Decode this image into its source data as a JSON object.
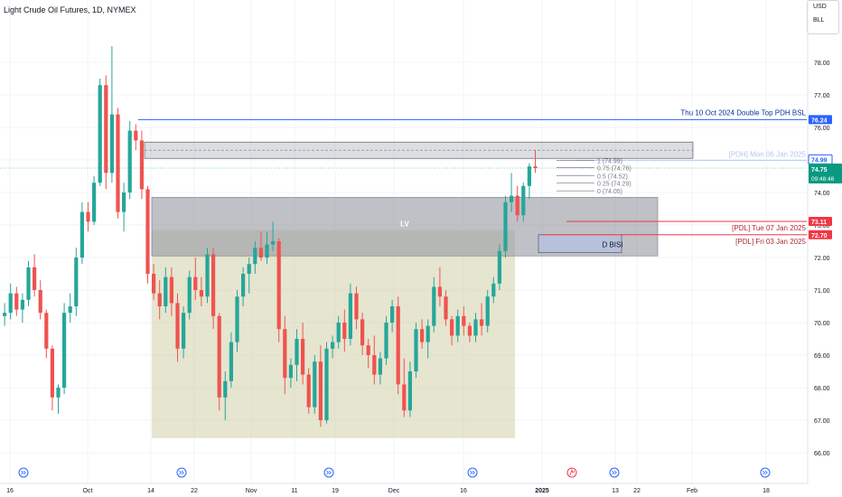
{
  "header": {
    "symbol_title": "Light Crude Oil Futures, 1D, NYMEX",
    "currency": "USD",
    "unit": "BLL"
  },
  "colors": {
    "up": "#26a69a",
    "down": "#ef5350",
    "blue_line": "#2962ff",
    "red_line": "#f23645",
    "range_box": "#d1d0a8",
    "lv_box": "#9598a1",
    "current_price": "#089981"
  },
  "chart_data": {
    "type": "candlestick",
    "ylim": [
      65.6,
      79.5
    ],
    "y_ticks": [
      66.0,
      67.0,
      68.0,
      69.0,
      70.0,
      71.0,
      72.0,
      73.0,
      74.0,
      75.0,
      76.0,
      77.0,
      78.0
    ],
    "x_ticks": [
      "16",
      "Oct",
      "14",
      "22",
      "Nov",
      "11",
      "19",
      "Dec",
      "16",
      "2025",
      "13",
      "22",
      "Feb",
      "18"
    ],
    "candles": [
      [
        70.2,
        70.6,
        69.9,
        70.3
      ],
      [
        70.3,
        71.2,
        70.1,
        70.9
      ],
      [
        70.9,
        71.1,
        70.2,
        70.4
      ],
      [
        70.4,
        70.9,
        70.0,
        70.7
      ],
      [
        70.7,
        71.9,
        70.5,
        71.7
      ],
      [
        71.7,
        72.1,
        70.8,
        71.0
      ],
      [
        71.0,
        71.3,
        70.1,
        70.3
      ],
      [
        70.3,
        70.4,
        68.9,
        69.2
      ],
      [
        69.2,
        69.3,
        67.3,
        67.7
      ],
      [
        67.7,
        68.1,
        67.2,
        68.0
      ],
      [
        68.0,
        70.6,
        67.8,
        70.3
      ],
      [
        70.3,
        70.9,
        70.0,
        70.5
      ],
      [
        70.5,
        72.3,
        70.2,
        72.0
      ],
      [
        72.0,
        73.7,
        71.8,
        73.4
      ],
      [
        73.4,
        73.7,
        72.8,
        73.1
      ],
      [
        73.1,
        74.5,
        73.0,
        74.3
      ],
      [
        74.3,
        77.5,
        74.2,
        77.3
      ],
      [
        77.3,
        77.6,
        74.1,
        74.6
      ],
      [
        74.6,
        78.5,
        74.3,
        76.4
      ],
      [
        76.4,
        76.6,
        73.2,
        73.4
      ],
      [
        73.4,
        74.3,
        72.8,
        74.0
      ],
      [
        74.0,
        76.2,
        73.8,
        75.9
      ],
      [
        75.9,
        76.1,
        75.3,
        75.6
      ],
      [
        75.6,
        75.9,
        73.8,
        74.1
      ],
      [
        74.1,
        74.2,
        71.2,
        71.5
      ],
      [
        71.5,
        71.8,
        70.7,
        70.9
      ],
      [
        70.9,
        71.3,
        70.1,
        70.5
      ],
      [
        70.5,
        71.7,
        70.3,
        71.4
      ],
      [
        71.4,
        71.7,
        70.2,
        70.6
      ],
      [
        70.6,
        70.9,
        68.8,
        69.2
      ],
      [
        69.2,
        70.5,
        68.9,
        70.3
      ],
      [
        70.3,
        71.6,
        70.1,
        71.4
      ],
      [
        71.4,
        72.0,
        70.7,
        71.0
      ],
      [
        71.0,
        71.4,
        70.5,
        70.8
      ],
      [
        70.8,
        72.3,
        70.6,
        72.1
      ],
      [
        72.1,
        72.3,
        69.8,
        70.2
      ],
      [
        70.2,
        70.3,
        67.3,
        67.7
      ],
      [
        67.7,
        68.5,
        67.0,
        68.2
      ],
      [
        68.2,
        69.7,
        68.0,
        69.4
      ],
      [
        69.4,
        71.0,
        69.1,
        70.8
      ],
      [
        70.8,
        71.7,
        70.5,
        71.5
      ],
      [
        71.5,
        72.0,
        70.9,
        71.8
      ],
      [
        71.8,
        72.5,
        71.5,
        72.3
      ],
      [
        72.3,
        72.8,
        71.9,
        72.0
      ],
      [
        72.0,
        72.8,
        71.8,
        72.4
      ],
      [
        72.4,
        73.1,
        72.2,
        72.5
      ],
      [
        72.5,
        72.6,
        69.4,
        69.8
      ],
      [
        69.8,
        70.2,
        67.8,
        68.3
      ],
      [
        68.3,
        68.9,
        68.0,
        68.7
      ],
      [
        68.7,
        69.8,
        68.2,
        69.5
      ],
      [
        69.5,
        70.0,
        68.1,
        68.4
      ],
      [
        68.4,
        68.6,
        67.2,
        67.4
      ],
      [
        67.4,
        69.0,
        67.2,
        68.8
      ],
      [
        68.8,
        69.3,
        66.8,
        67.0
      ],
      [
        67.0,
        69.4,
        66.9,
        69.2
      ],
      [
        69.2,
        69.6,
        68.9,
        69.4
      ],
      [
        69.4,
        70.2,
        69.2,
        70.0
      ],
      [
        70.0,
        70.4,
        69.1,
        69.5
      ],
      [
        69.5,
        71.2,
        69.3,
        70.9
      ],
      [
        70.9,
        71.1,
        69.8,
        70.1
      ],
      [
        70.1,
        70.3,
        69.0,
        69.3
      ],
      [
        69.3,
        69.5,
        68.6,
        69.0
      ],
      [
        69.0,
        69.6,
        68.1,
        68.4
      ],
      [
        68.4,
        69.1,
        68.1,
        68.9
      ],
      [
        68.9,
        70.2,
        68.7,
        70.0
      ],
      [
        70.0,
        70.7,
        69.7,
        70.5
      ],
      [
        70.5,
        70.8,
        67.8,
        68.1
      ],
      [
        68.1,
        68.9,
        67.1,
        67.3
      ],
      [
        67.3,
        68.8,
        67.1,
        68.5
      ],
      [
        68.5,
        70.0,
        68.3,
        69.8
      ],
      [
        69.8,
        70.1,
        69.2,
        69.4
      ],
      [
        69.4,
        70.1,
        68.9,
        69.9
      ],
      [
        69.9,
        71.4,
        69.7,
        71.1
      ],
      [
        71.1,
        71.7,
        70.5,
        70.8
      ],
      [
        70.8,
        71.0,
        69.9,
        70.1
      ],
      [
        70.1,
        70.2,
        69.3,
        69.6
      ],
      [
        69.6,
        70.4,
        69.4,
        70.2
      ],
      [
        70.2,
        70.5,
        69.6,
        69.9
      ],
      [
        69.9,
        70.0,
        69.4,
        69.6
      ],
      [
        69.6,
        70.3,
        69.4,
        70.1
      ],
      [
        70.1,
        70.6,
        69.6,
        69.9
      ],
      [
        69.9,
        71.0,
        69.7,
        70.8
      ],
      [
        70.8,
        71.4,
        70.6,
        71.2
      ],
      [
        71.2,
        72.4,
        71.0,
        72.2
      ],
      [
        72.2,
        73.9,
        72.0,
        73.7
      ],
      [
        73.7,
        74.6,
        73.4,
        73.9
      ],
      [
        73.9,
        74.2,
        73.1,
        73.3
      ],
      [
        73.3,
        74.3,
        73.1,
        74.2
      ],
      [
        74.2,
        74.9,
        73.8,
        74.8
      ],
      [
        74.8,
        75.3,
        74.6,
        74.75
      ]
    ],
    "annotations": {
      "range_box_label": "",
      "lv_label": "LV",
      "bisi_label": "D BISI",
      "pdh_double_top": {
        "label": "Thu 10 Oct 2024 Double Top PDH BSL",
        "price": 76.24,
        "price_label": "76.24"
      },
      "pdh_monday": {
        "label": "[PDH] Mon 06 Jan 2025",
        "price": 74.99,
        "price_label": "74.99"
      },
      "pdl_tue": {
        "label": "[PDL] Tue 07 Jan 2025",
        "price": 73.11,
        "price_label": "73.11"
      },
      "pdl_fri": {
        "label": "[PDL] Fri 03 Jan 2025",
        "price": 72.7,
        "price_label": "72.70"
      },
      "current": {
        "price": 74.75,
        "price_label": "74.75",
        "countdown": "09:48:48"
      },
      "fib_levels": [
        {
          "label": "1 (74.99)",
          "price": 74.99
        },
        {
          "label": "0.75 (74.76)",
          "price": 74.76
        },
        {
          "label": "0.5 (74.52)",
          "price": 74.52
        },
        {
          "label": "0.25 (74.29)",
          "price": 74.29
        },
        {
          "label": "0 (74.05)",
          "price": 74.05
        }
      ]
    }
  }
}
